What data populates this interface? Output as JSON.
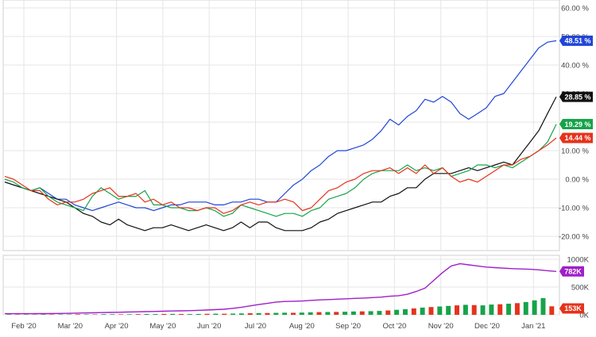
{
  "chart_data": [
    {
      "type": "line",
      "title": "",
      "xlabel": "",
      "ylabel": "",
      "x_ticks": [
        "Feb '20",
        "Mar '20",
        "Apr '20",
        "May '20",
        "Jun '20",
        "Jul '20",
        "Aug '20",
        "Sep '20",
        "Oct '20",
        "Nov '20",
        "Dec '20",
        "Jan '21"
      ],
      "y_ticks": [
        "60.00 %",
        "50.00 %",
        "40.00 %",
        "30.00 %",
        "20.00 %",
        "10.00 %",
        "0.00 %",
        "-10.00 %",
        "-20.00 %"
      ],
      "ylim": [
        -25,
        60
      ],
      "y_unit": "%",
      "grid": true,
      "series": [
        {
          "color": "#1f45d8",
          "last_label": "48.51 %",
          "last_value": 48.51,
          "values": [
            -1,
            -2,
            -3,
            -4,
            -3,
            -5,
            -7,
            -7,
            -9,
            -10,
            -11,
            -10,
            -9,
            -8,
            -9,
            -10,
            -10,
            -11,
            -10,
            -9,
            -9,
            -8,
            -8,
            -8,
            -9,
            -9,
            -8,
            -8,
            -7,
            -7,
            -8,
            -8,
            -5,
            -2,
            0,
            3,
            5,
            8,
            10,
            10,
            11,
            12,
            14,
            17,
            21,
            19,
            22,
            24,
            28,
            27,
            29,
            27,
            23,
            21,
            23,
            25,
            29,
            30,
            34,
            38,
            42,
            46,
            48,
            48.51
          ]
        },
        {
          "color": "#111111",
          "last_label": "28.85 %",
          "last_value": 28.85,
          "values": [
            -1,
            -2,
            -3,
            -4,
            -5,
            -6,
            -7,
            -8,
            -10,
            -12,
            -13,
            -15,
            -16,
            -14,
            -16,
            -17,
            -18,
            -17,
            -17,
            -16,
            -17,
            -18,
            -17,
            -16,
            -17,
            -18,
            -17,
            -15,
            -17,
            -15,
            -15,
            -17,
            -18,
            -18,
            -18,
            -17,
            -15,
            -14,
            -12,
            -11,
            -10,
            -9,
            -8,
            -8,
            -6,
            -5,
            -3,
            -3,
            0,
            2,
            2,
            2,
            3,
            4,
            3,
            4,
            5,
            6,
            5,
            9,
            13,
            17,
            23,
            28.85
          ]
        },
        {
          "color": "#17a34a",
          "last_label": "19.29 %",
          "last_value": 19.29,
          "values": [
            0,
            -1,
            -3,
            -4,
            -3,
            -6,
            -8,
            -9,
            -10,
            -11,
            -6,
            -3,
            -5,
            -7,
            -6,
            -6,
            -4,
            -9,
            -9,
            -10,
            -10,
            -11,
            -11,
            -10,
            -11,
            -13,
            -12,
            -9,
            -10,
            -11,
            -12,
            -13,
            -12,
            -12,
            -13,
            -11,
            -10,
            -7,
            -6,
            -5,
            -3,
            0,
            2,
            3,
            3,
            3,
            5,
            3,
            4,
            3,
            4,
            1,
            2,
            3,
            5,
            5,
            4,
            5,
            4,
            6,
            8,
            10,
            13,
            19.29
          ]
        },
        {
          "color": "#e5331b",
          "last_label": "14.44 %",
          "last_value": 14.44,
          "values": [
            1,
            0,
            -2,
            -4,
            -4,
            -7,
            -9,
            -8,
            -8,
            -7,
            -5,
            -4,
            -3,
            -6,
            -6,
            -5,
            -8,
            -7,
            -9,
            -8,
            -10,
            -10,
            -11,
            -10,
            -10,
            -12,
            -11,
            -9,
            -8,
            -9,
            -8,
            -8,
            -7,
            -8,
            -11,
            -10,
            -7,
            -4,
            -3,
            -1,
            0,
            2,
            3,
            3,
            4,
            2,
            4,
            2,
            5,
            2,
            4,
            1,
            -1,
            0,
            -1,
            1,
            3,
            5,
            5,
            7,
            8,
            10,
            12,
            14.44
          ]
        }
      ]
    },
    {
      "type": "bar",
      "title": "",
      "xlabel": "",
      "ylabel": "",
      "y_ticks": [
        "1000K",
        "500K",
        "0K"
      ],
      "ylim": [
        0,
        1000
      ],
      "y_unit": "K",
      "grid": true,
      "line_series": {
        "color": "#a01fc9",
        "last_label": "782K",
        "last_value": 782,
        "values": [
          20,
          20,
          20,
          20,
          21,
          22,
          24,
          26,
          30,
          33,
          36,
          40,
          43,
          46,
          50,
          53,
          57,
          60,
          64,
          68,
          72,
          75,
          80,
          86,
          93,
          100,
          115,
          135,
          160,
          185,
          205,
          230,
          240,
          245,
          248,
          260,
          268,
          275,
          281,
          289,
          296,
          302,
          310,
          318,
          335,
          345,
          370,
          420,
          480,
          620,
          760,
          880,
          920,
          900,
          880,
          860,
          850,
          840,
          832,
          826,
          820,
          810,
          795,
          782
        ]
      },
      "bar_series": {
        "color_up": "#17a34a",
        "color_down": "#e5331b",
        "last_label": "153K",
        "last_value": 153,
        "values": [
          8,
          6,
          7,
          5,
          9,
          6,
          8,
          7,
          10,
          9,
          8,
          12,
          11,
          9,
          10,
          12,
          14,
          13,
          15,
          16,
          14,
          13,
          15,
          18,
          20,
          19,
          22,
          25,
          28,
          30,
          32,
          35,
          38,
          36,
          40,
          45,
          48,
          50,
          52,
          55,
          60,
          62,
          65,
          70,
          78,
          90,
          100,
          115,
          130,
          140,
          150,
          160,
          170,
          180,
          175,
          170,
          185,
          190,
          200,
          210,
          230,
          260,
          300,
          153
        ],
        "directions": [
          1,
          0,
          1,
          0,
          1,
          0,
          1,
          1,
          0,
          1,
          0,
          1,
          1,
          0,
          1,
          0,
          1,
          1,
          0,
          1,
          0,
          1,
          1,
          0,
          1,
          0,
          1,
          1,
          0,
          1,
          0,
          1,
          1,
          0,
          1,
          1,
          0,
          1,
          0,
          1,
          1,
          0,
          1,
          1,
          0,
          1,
          1,
          0,
          1,
          0,
          1,
          1,
          0,
          1,
          0,
          1,
          1,
          0,
          1,
          0,
          1,
          1,
          1,
          0
        ]
      }
    }
  ]
}
